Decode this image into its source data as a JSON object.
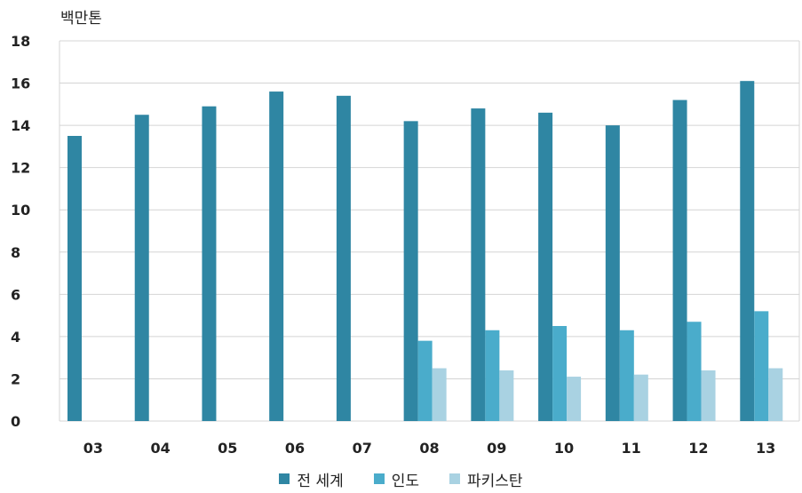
{
  "chart_data": {
    "type": "bar",
    "title": "",
    "xlabel": "",
    "ylabel": "백만톤",
    "ylim": [
      0,
      18
    ],
    "yticks": [
      0,
      2,
      4,
      6,
      8,
      10,
      12,
      14,
      16,
      18
    ],
    "grid": true,
    "legend_position": "bottom",
    "categories": [
      "03",
      "04",
      "05",
      "06",
      "07",
      "08",
      "09",
      "10",
      "11",
      "12",
      "13"
    ],
    "series": [
      {
        "name": "전 세계",
        "color": "#2f86a3",
        "values": [
          13.5,
          14.5,
          14.9,
          15.6,
          15.4,
          14.2,
          14.8,
          14.6,
          14.0,
          15.2,
          16.1
        ]
      },
      {
        "name": "인도",
        "color": "#4aaccb",
        "values": [
          null,
          null,
          null,
          null,
          null,
          3.8,
          4.3,
          4.5,
          4.3,
          4.7,
          5.2
        ]
      },
      {
        "name": "파키스탄",
        "color": "#a9d2e2",
        "values": [
          null,
          null,
          null,
          null,
          null,
          2.5,
          2.4,
          2.1,
          2.2,
          2.4,
          2.5
        ]
      }
    ]
  }
}
